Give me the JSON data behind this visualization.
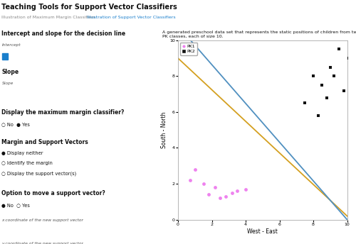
{
  "title": "Teaching Tools for Support Vector Classifiers",
  "subtitle_gray": "Illustration of Maximum Margin Classifiers",
  "subtitle_blue": "Illustration of Support Vector Classifiers",
  "description": "A generated preschool data set that represents the static positions of children from two\nPK classes, each of size 10.",
  "pk1_x": [
    1.0,
    0.7,
    1.5,
    2.2,
    3.2,
    1.8,
    2.8,
    3.5,
    4.0,
    2.5
  ],
  "pk1_y": [
    2.8,
    2.2,
    2.0,
    1.8,
    1.5,
    1.4,
    1.3,
    1.6,
    1.7,
    1.2
  ],
  "pk2_x": [
    7.5,
    8.5,
    8.0,
    9.0,
    9.5,
    8.8,
    9.8,
    10.1,
    8.3,
    9.2
  ],
  "pk2_y": [
    6.5,
    7.5,
    8.0,
    8.5,
    9.5,
    6.8,
    7.2,
    9.0,
    5.8,
    8.0
  ],
  "pk1_color": "#EE82EE",
  "pk2_color": "#111111",
  "orange_line_intercept": 9.0,
  "orange_line_slope": -0.88,
  "blue_line_intercept": 10.8,
  "blue_line_slope": -1.08,
  "orange_color": "#D4A020",
  "blue_color": "#5090C0",
  "xlim": [
    0,
    10
  ],
  "ylim": [
    0,
    10
  ],
  "xlabel": "West - East",
  "ylabel": "South - North",
  "bg_color": "#FFFFFF",
  "panel_bg": "#F8F8F8"
}
